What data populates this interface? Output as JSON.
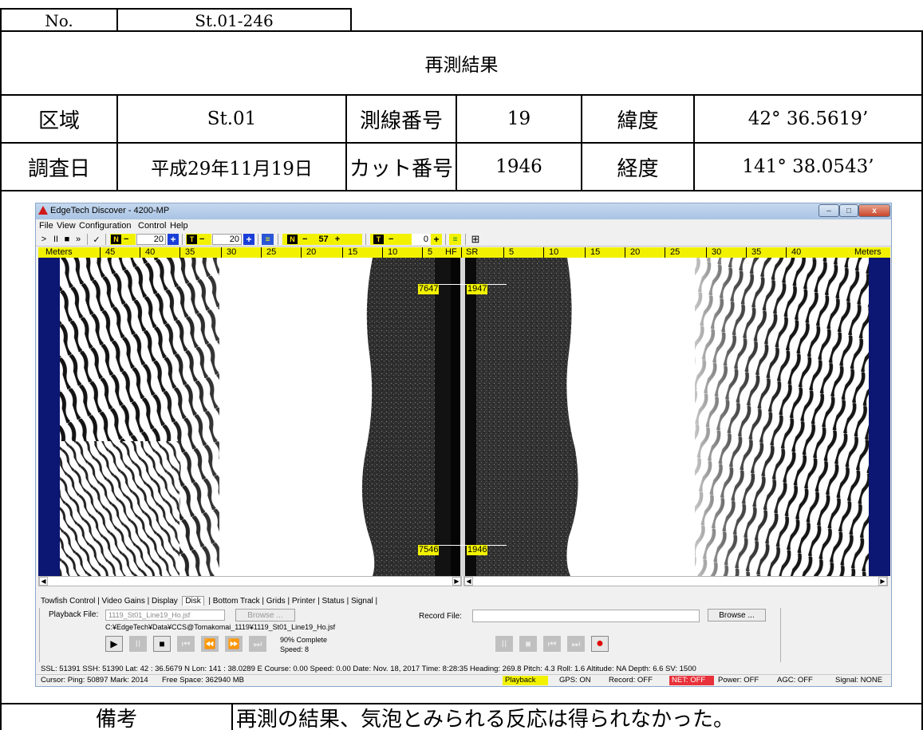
{
  "form": {
    "no_label": "No.",
    "no_value": "St.01-246",
    "title": "再測結果",
    "area_label": "区域",
    "area_value": "St.01",
    "line_label": "測線番号",
    "line_value": "19",
    "lat_label": "緯度",
    "lat_value": "42° 36.5619’",
    "date_label": "調査日",
    "date_value": "平成29年11月19日",
    "cut_label": "カット番号",
    "cut_value": "1946",
    "lon_label": "経度",
    "lon_value": "141° 38.0543’",
    "remarks_label": "備考",
    "remarks_value": "再測の結果、気泡とみられる反応は得られなかった。"
  },
  "app": {
    "title": "EdgeTech Discover - 4200-MP",
    "window_buttons": {
      "minimize": "–",
      "maximize": "□",
      "close": "x"
    },
    "menu": [
      "File",
      "View",
      "Configuration",
      "Control",
      "Help"
    ],
    "toolbar": {
      "transport": [
        ">",
        "II",
        "■",
        "»",
        "✓"
      ],
      "gain_n1": "N",
      "gain_n1_minus": "−",
      "gain_n1_value": "20",
      "gain_n1_plus": "+",
      "gain_t1": "T",
      "gain_t1_minus": "−",
      "gain_t1_value": "20",
      "gain_t1_plus": "+",
      "gain_n2": "N",
      "gain_n2_minus": "−",
      "gain_n2_value": "57",
      "gain_n2_plus": "+",
      "gain_t2": "T",
      "gain_t2_minus": "−",
      "gain_t2_value": "0",
      "gain_t2_plus": "+",
      "grid_icon": "⊞"
    },
    "scale": {
      "left_unit": "Meters",
      "left_ticks": [
        "45",
        "40",
        "35",
        "30",
        "25",
        "20",
        "15",
        "10",
        "5",
        "HF"
      ],
      "right_ticks": [
        "SR",
        "5",
        "10",
        "15",
        "20",
        "25",
        "30",
        "35",
        "40"
      ],
      "right_unit": "Meters"
    },
    "markers": {
      "top_left": "7647",
      "top_right": "1947",
      "bottom_left": "7546",
      "bottom_right": "1946"
    },
    "tabs": [
      "Towfish Control",
      "Video Gains",
      "Display",
      "Disk",
      "Bottom Track",
      "Grids",
      "Printer",
      "Status",
      "Signal"
    ],
    "disk": {
      "playback_label": "Playback File:",
      "playback_value": "1119_St01_Line19_Ho.jsf",
      "browse_disabled": "Browse ...",
      "full_path": "C:¥EdgeTech¥Data¥CCS@Tomakomai_1119¥1119_St01_Line19_Ho.jsf",
      "progress": "90% Complete",
      "speed": "Speed: 8",
      "record_label": "Record File:",
      "record_value": "",
      "browse": "Browse ..."
    },
    "status_line": "SSL: 51391  SSH: 51390  Lat:  42 : 36.5679 N  Lon:  141 : 38.0289 E  Course: 0.00  Speed: 0.00  Date: Nov. 18, 2017  Time:  8:28:35  Heading: 269.8  Pitch:   4.3  Roll:   1.6  Altitude: NA  Depth:   6.6    SV: 1500",
    "status_bar": {
      "cursor": "Cursor: Ping:  50897  Mark:  2014",
      "free_space": "Free Space: 362940 MB",
      "playback": "Playback",
      "gps": "GPS: ON",
      "record": "Record: OFF",
      "net": "NET: OFF",
      "power": "Power: OFF",
      "agc": "AGC: OFF",
      "signal": "Signal: NONE"
    },
    "colors": {
      "yellow": "#f2f200",
      "sonar_edge": "#0c1673",
      "net_red": "#e8313a",
      "record_red": "#e00000"
    }
  }
}
